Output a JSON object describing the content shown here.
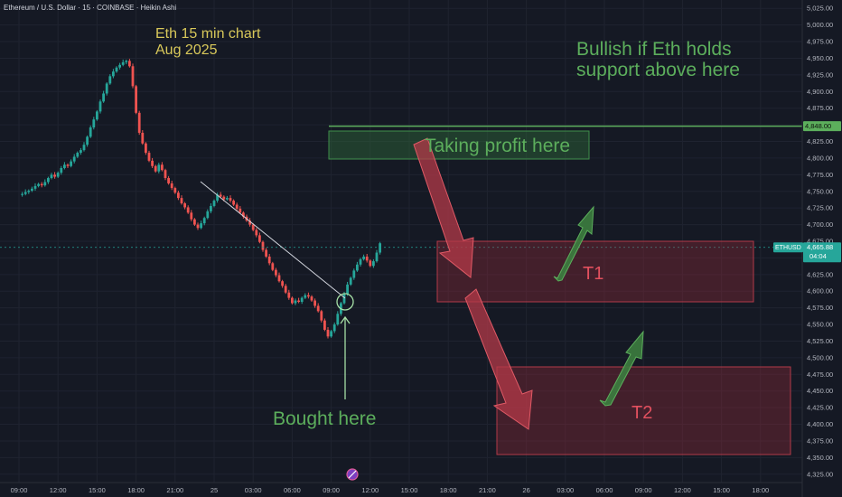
{
  "header": {
    "symbol_line": "Ethereum / U.S. Dollar · 15 · COINBASE · Heikin Ashi"
  },
  "annotations": {
    "title_line1": "Eth 15 min chart",
    "title_line2": "Aug 2025",
    "bullish_line1": "Bullish if Eth holds",
    "bullish_line2": "support above here",
    "taking_profit": "Taking profit here",
    "t1": "T1",
    "t2": "T2",
    "bought_here": "Bought here"
  },
  "price_tags": {
    "resistance": "4,848.00",
    "current_symbol": "ETHUSD",
    "current_price": "4,665.88",
    "countdown": "04:04"
  },
  "colors": {
    "background": "#151924",
    "bull_candle": "#26a69a",
    "bear_candle": "#ef5350",
    "annotation_green": "#5cae5c",
    "annotation_yellow": "#d8c85a",
    "target_box": "#c33a48",
    "profit_box": "#3f8f4a",
    "axis_text": "#b2b5be"
  },
  "chart_data": {
    "type": "candlestick",
    "style": "Heikin Ashi",
    "instrument": "Ethereum / U.S. Dollar",
    "interval": "15",
    "exchange": "COINBASE",
    "ylim": [
      4312.5,
      5037.5
    ],
    "y_ticks": [
      4325,
      4350,
      4375,
      4400,
      4425,
      4450,
      4475,
      4500,
      4525,
      4550,
      4575,
      4600,
      4625,
      4650,
      4675,
      4700,
      4725,
      4750,
      4775,
      4800,
      4825,
      4850,
      4875,
      4900,
      4925,
      4950,
      4975,
      5000,
      5025
    ],
    "y_tick_labels": [
      "4,325.00",
      "4,350.00",
      "4,375.00",
      "4,400.00",
      "4,425.00",
      "4,450.00",
      "4,475.00",
      "4,500.00",
      "4,525.00",
      "4,550.00",
      "4,575.00",
      "4,600.00",
      "4,625.00",
      "4,650.00",
      "4,675.00",
      "4,700.00",
      "4,725.00",
      "4,750.00",
      "4,775.00",
      "4,800.00",
      "4,825.00",
      "4,850.00",
      "4,875.00",
      "4,900.00",
      "4,925.00",
      "4,950.00",
      "4,975.00",
      "5,000.00",
      "5,025.00"
    ],
    "x_ticks": [
      "09:00",
      "12:00",
      "15:00",
      "18:00",
      "21:00",
      "25",
      "03:00",
      "06:00",
      "09:00",
      "12:00",
      "15:00",
      "18:00",
      "21:00",
      "26",
      "03:00",
      "06:00",
      "09:00",
      "12:00",
      "15:00",
      "18:00"
    ],
    "x_tick_bar": [
      0,
      12,
      24,
      36,
      48,
      60,
      72,
      84,
      96,
      108,
      120,
      132,
      144,
      156,
      168,
      180,
      192,
      204,
      216,
      228
    ],
    "bar_axis": {
      "first_bar_offset": -3.5,
      "last_visible_bar": 243
    },
    "current_price": 4665.88,
    "resistance_level": 4848.0,
    "candle_path": [
      4745,
      4746,
      4749,
      4751,
      4754,
      4758,
      4761,
      4759,
      4764,
      4770,
      4775,
      4772,
      4778,
      4785,
      4790,
      4788,
      4795,
      4802,
      4808,
      4812,
      4820,
      4832,
      4846,
      4858,
      4870,
      4885,
      4897,
      4912,
      4923,
      4930,
      4936,
      4940,
      4944,
      4946,
      4938,
      4908,
      4868,
      4838,
      4822,
      4808,
      4796,
      4788,
      4780,
      4790,
      4782,
      4770,
      4762,
      4755,
      4748,
      4740,
      4732,
      4726,
      4718,
      4708,
      4700,
      4695,
      4702,
      4710,
      4720,
      4728,
      4736,
      4745,
      4742,
      4738,
      4740,
      4736,
      4730,
      4724,
      4718,
      4712,
      4706,
      4700,
      4692,
      4684,
      4674,
      4662,
      4652,
      4642,
      4632,
      4624,
      4615,
      4608,
      4598,
      4590,
      4582,
      4586,
      4584,
      4590,
      4594,
      4592,
      4586,
      4578,
      4570,
      4556,
      4542,
      4532,
      4540,
      4550,
      4566,
      4582,
      4596,
      4610,
      4620,
      4631,
      4640,
      4648,
      4652,
      4646,
      4638,
      4645,
      4658,
      4672
    ]
  }
}
